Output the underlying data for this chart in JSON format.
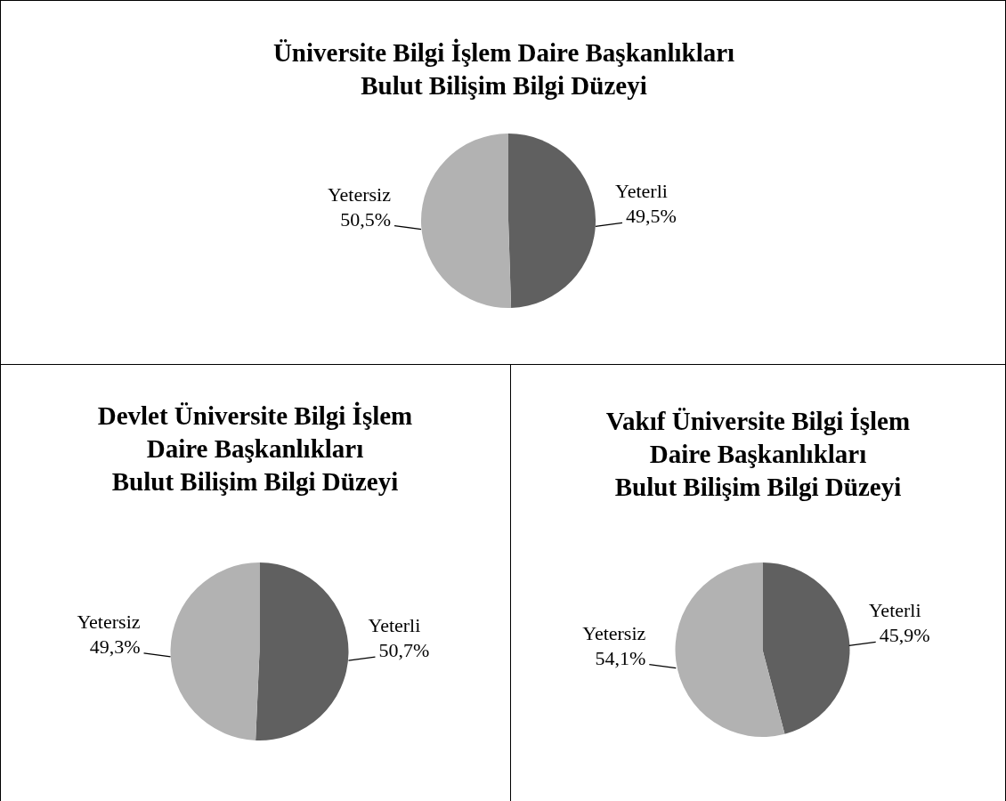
{
  "chart_data": [
    {
      "type": "pie",
      "title": "Üniversite Bilgi İşlem Daire Başkanlıkları\nBulut Bilişim Bilgi Düzeyi",
      "categories": [
        "Yeterli",
        "Yetersiz"
      ],
      "values": [
        49.5,
        50.5
      ],
      "value_labels": [
        "49,5%",
        "50,5%"
      ],
      "colors": [
        "#606060",
        "#b2b2b2"
      ],
      "legend": false
    },
    {
      "type": "pie",
      "title": "Devlet Üniversite Bilgi İşlem\nDaire Başkanlıkları\nBulut Bilişim Bilgi Düzeyi",
      "categories": [
        "Yeterli",
        "Yetersiz"
      ],
      "values": [
        50.7,
        49.3
      ],
      "value_labels": [
        "50,7%",
        "49,3%"
      ],
      "colors": [
        "#606060",
        "#b2b2b2"
      ],
      "legend": false
    },
    {
      "type": "pie",
      "title": "Vakıf Üniversite Bilgi İşlem\nDaire Başkanlıkları\nBulut Bilişim Bilgi Düzeyi",
      "categories": [
        "Yeterli",
        "Yetersiz"
      ],
      "values": [
        45.9,
        54.1
      ],
      "value_labels": [
        "45,9%",
        "54,1%"
      ],
      "colors": [
        "#606060",
        "#b2b2b2"
      ],
      "legend": false
    }
  ]
}
